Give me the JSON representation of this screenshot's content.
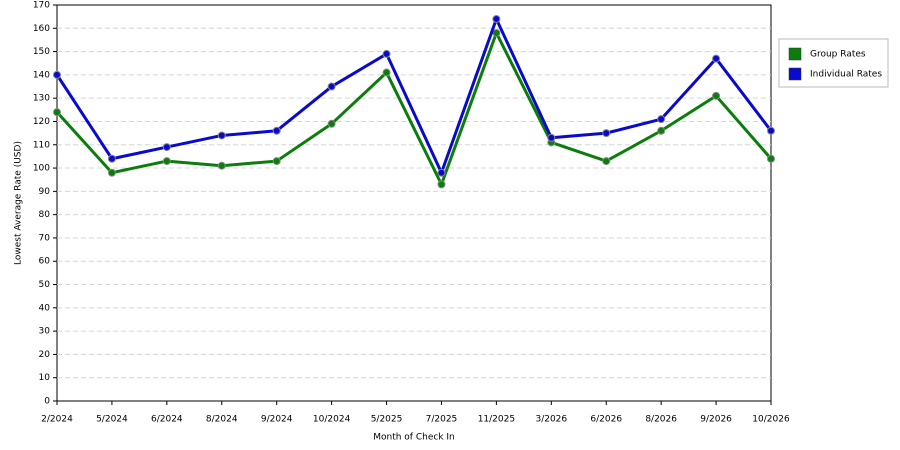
{
  "chart_data": {
    "type": "line",
    "x_label": "Month of Check In",
    "y_label": "Lowest Average Rate (USD)",
    "categories": [
      "2/2024",
      "5/2024",
      "6/2024",
      "8/2024",
      "9/2024",
      "10/2024",
      "5/2025",
      "7/2025",
      "11/2025",
      "3/2026",
      "6/2026",
      "8/2026",
      "9/2026",
      "10/2026"
    ],
    "series": [
      {
        "name": "Group Rates",
        "color": "#0b7d0b",
        "values": [
          124,
          98,
          103,
          101,
          103,
          119,
          141,
          93,
          158,
          111,
          103,
          116,
          131,
          104
        ]
      },
      {
        "name": "Individual Rates",
        "color": "#0a0acc",
        "values": [
          140,
          104,
          109,
          114,
          116,
          135,
          149,
          98,
          164,
          113,
          115,
          121,
          147,
          116
        ]
      }
    ],
    "ylim": [
      0,
      170
    ],
    "yticks": [
      0,
      10,
      20,
      30,
      40,
      50,
      60,
      70,
      80,
      90,
      100,
      110,
      120,
      130,
      140,
      150,
      160,
      170
    ],
    "grid": true,
    "legend": "right"
  }
}
